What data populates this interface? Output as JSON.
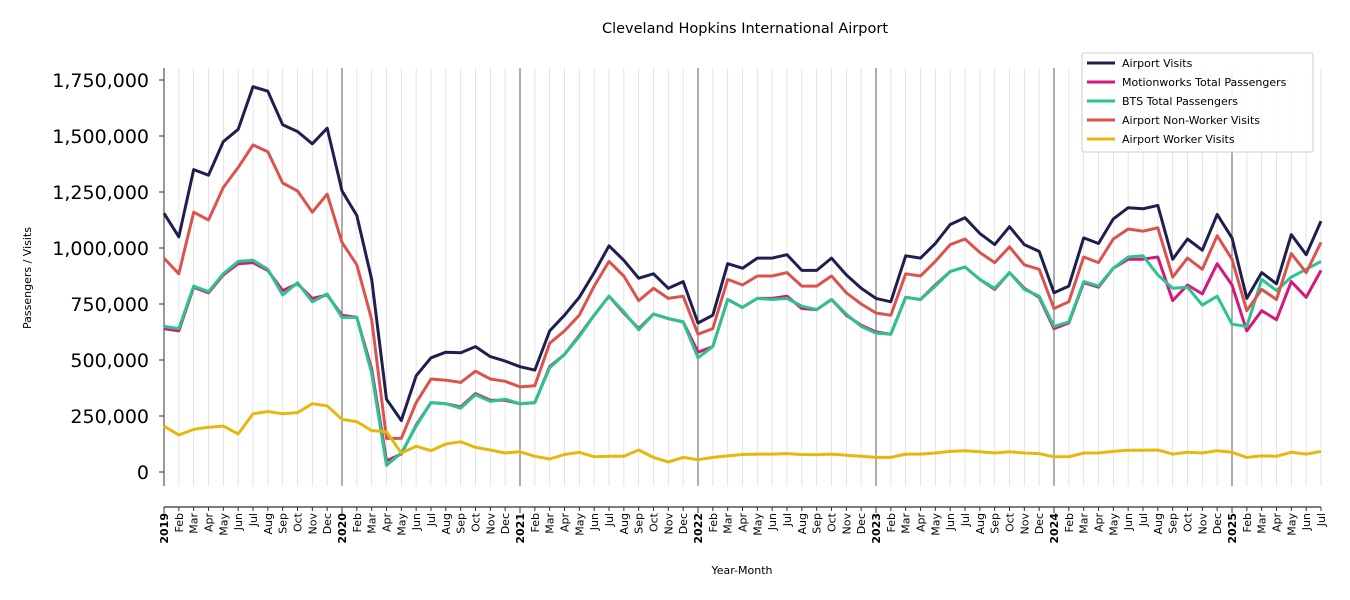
{
  "chart_data": {
    "type": "line",
    "title": "Cleveland Hopkins International Airport",
    "xlabel": "Year-Month",
    "ylabel": "Passengers / Visits",
    "ylim": [
      -60000,
      1800000
    ],
    "yticks": [
      0,
      250000,
      500000,
      750000,
      1000000,
      1250000,
      1500000,
      1750000
    ],
    "ytick_labels": [
      "0",
      "250,000",
      "500,000",
      "750,000",
      "1,000,000",
      "1,250,000",
      "1,500,000",
      "1,750,000"
    ],
    "x_start": "2019-01",
    "x_end": "2025-07",
    "year_labels": [
      "2019",
      "2020",
      "2021",
      "2022",
      "2023",
      "2024",
      "2025"
    ],
    "month_labels": [
      "Jan",
      "Feb",
      "Mar",
      "Apr",
      "May",
      "Jun",
      "Jul",
      "Aug",
      "Sep",
      "Oct",
      "Nov",
      "Dec"
    ],
    "grid": "vertical monthly minor lines; year separator lines",
    "legend_position": "top-right",
    "series": [
      {
        "name": "Airport Visits",
        "color": "#1f1f4f",
        "values": [
          1155000,
          1050000,
          1350000,
          1325000,
          1475000,
          1530000,
          1720000,
          1700000,
          1550000,
          1520000,
          1465000,
          1535000,
          1255000,
          1145000,
          860000,
          325000,
          230000,
          430000,
          510000,
          535000,
          532000,
          560000,
          515000,
          495000,
          470000,
          455000,
          630000,
          700000,
          780000,
          890000,
          1010000,
          945000,
          865000,
          885000,
          820000,
          850000,
          665000,
          700000,
          930000,
          910000,
          955000,
          955000,
          970000,
          900000,
          900000,
          955000,
          880000,
          820000,
          775000,
          760000,
          965000,
          955000,
          1020000,
          1105000,
          1135000,
          1065000,
          1015000,
          1095000,
          1015000,
          985000,
          800000,
          830000,
          1045000,
          1020000,
          1130000,
          1180000,
          1175000,
          1190000,
          950000,
          1040000,
          990000,
          1150000,
          1045000,
          775000,
          890000,
          840000,
          1060000,
          970000,
          1120000
        ]
      },
      {
        "name": "Motionworks Total Passengers",
        "color": "#d6187d",
        "values": [
          640000,
          630000,
          825000,
          800000,
          880000,
          930000,
          935000,
          900000,
          810000,
          840000,
          775000,
          790000,
          700000,
          690000,
          460000,
          50000,
          80000,
          210000,
          310000,
          305000,
          290000,
          350000,
          320000,
          320000,
          305000,
          310000,
          470000,
          525000,
          610000,
          700000,
          785000,
          710000,
          640000,
          705000,
          685000,
          670000,
          535000,
          560000,
          770000,
          735000,
          775000,
          775000,
          785000,
          730000,
          725000,
          770000,
          700000,
          655000,
          625000,
          615000,
          780000,
          770000,
          835000,
          895000,
          915000,
          860000,
          815000,
          890000,
          820000,
          780000,
          640000,
          665000,
          845000,
          825000,
          910000,
          950000,
          950000,
          960000,
          765000,
          835000,
          795000,
          930000,
          835000,
          630000,
          720000,
          680000,
          850000,
          780000,
          900000
        ]
      },
      {
        "name": "BTS Total Passengers",
        "color": "#2cc48e",
        "values": [
          650000,
          640000,
          830000,
          805000,
          885000,
          940000,
          945000,
          905000,
          790000,
          845000,
          760000,
          795000,
          690000,
          690000,
          440000,
          30000,
          85000,
          205000,
          310000,
          305000,
          285000,
          345000,
          315000,
          325000,
          305000,
          310000,
          465000,
          525000,
          605000,
          700000,
          785000,
          715000,
          635000,
          705000,
          685000,
          670000,
          510000,
          560000,
          770000,
          735000,
          775000,
          770000,
          775000,
          740000,
          725000,
          770000,
          705000,
          650000,
          620000,
          615000,
          780000,
          770000,
          830000,
          895000,
          915000,
          860000,
          820000,
          890000,
          815000,
          785000,
          650000,
          670000,
          850000,
          830000,
          910000,
          960000,
          965000,
          880000,
          820000,
          825000,
          745000,
          785000,
          660000,
          650000,
          860000,
          810000,
          870000,
          905000,
          940000
        ]
      },
      {
        "name": "Airport Non-Worker Visits",
        "color": "#dc534d",
        "values": [
          955000,
          885000,
          1160000,
          1125000,
          1270000,
          1360000,
          1460000,
          1430000,
          1290000,
          1255000,
          1160000,
          1240000,
          1025000,
          925000,
          680000,
          150000,
          150000,
          310000,
          415000,
          410000,
          400000,
          450000,
          415000,
          405000,
          380000,
          385000,
          575000,
          630000,
          700000,
          830000,
          940000,
          875000,
          765000,
          820000,
          775000,
          785000,
          615000,
          640000,
          860000,
          835000,
          875000,
          875000,
          890000,
          830000,
          830000,
          875000,
          800000,
          750000,
          710000,
          700000,
          885000,
          875000,
          940000,
          1015000,
          1040000,
          980000,
          935000,
          1005000,
          925000,
          905000,
          730000,
          760000,
          960000,
          935000,
          1040000,
          1085000,
          1075000,
          1090000,
          870000,
          955000,
          905000,
          1055000,
          950000,
          720000,
          815000,
          770000,
          975000,
          890000,
          1025000
        ]
      },
      {
        "name": "Airport Worker Visits",
        "color": "#e6b80f",
        "values": [
          205000,
          165000,
          190000,
          200000,
          205000,
          170000,
          260000,
          270000,
          260000,
          265000,
          305000,
          295000,
          235000,
          225000,
          185000,
          180000,
          85000,
          115000,
          95000,
          125000,
          135000,
          110000,
          98000,
          85000,
          90000,
          70000,
          58000,
          78000,
          88000,
          68000,
          70000,
          70000,
          98000,
          65000,
          45000,
          65000,
          55000,
          65000,
          72000,
          78000,
          80000,
          80000,
          82000,
          78000,
          77000,
          80000,
          75000,
          70000,
          65000,
          65000,
          80000,
          80000,
          85000,
          92000,
          95000,
          90000,
          85000,
          90000,
          85000,
          82000,
          68000,
          68000,
          85000,
          85000,
          92000,
          97000,
          97000,
          98000,
          80000,
          88000,
          85000,
          95000,
          88000,
          65000,
          72000,
          70000,
          88000,
          80000,
          92000
        ]
      }
    ]
  }
}
